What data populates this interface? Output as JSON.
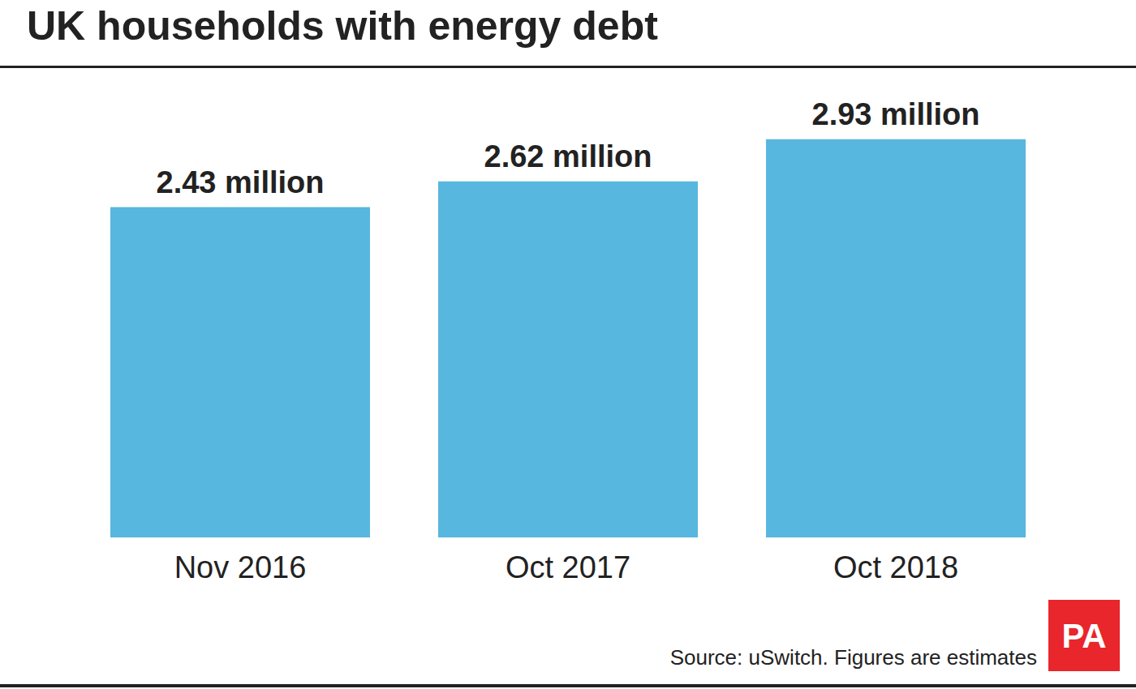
{
  "chart_data": {
    "type": "bar",
    "title": "UK households with energy debt",
    "categories": [
      "Nov 2016",
      "Oct 2017",
      "Oct 2018"
    ],
    "values": [
      2.43,
      2.62,
      2.93
    ],
    "value_labels": [
      "2.43 million",
      "2.62 million",
      "2.93 million"
    ],
    "color": "#58b7de",
    "data_labels": true,
    "tick_labels": "x",
    "grid": false,
    "source": "Source: uSwitch. Figures are estimates",
    "logo": "PA"
  }
}
